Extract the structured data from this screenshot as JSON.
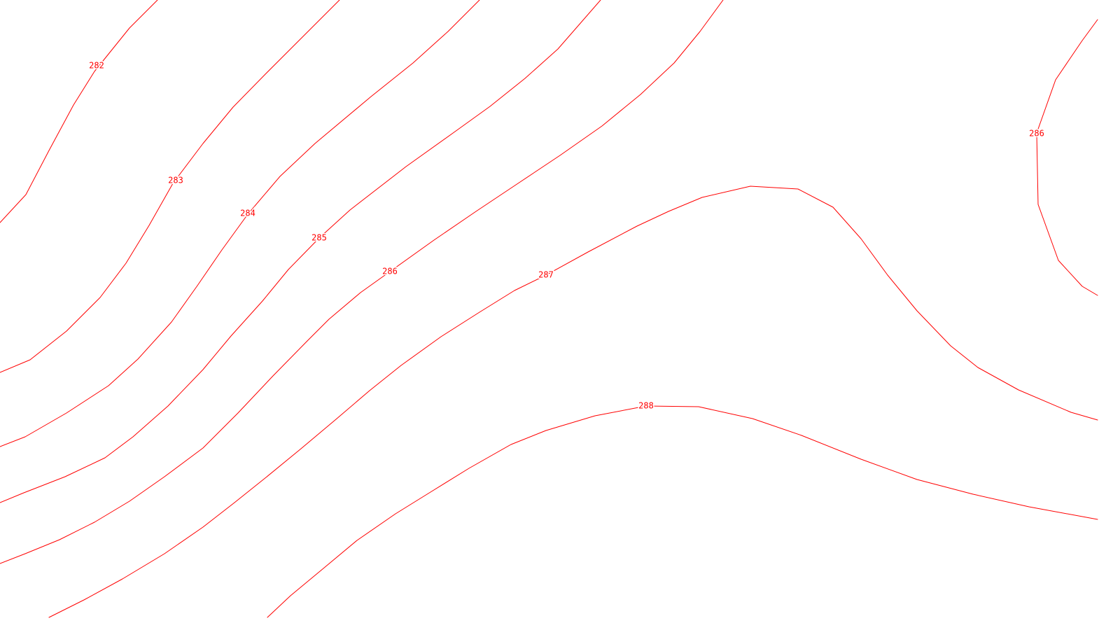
{
  "map": {
    "line_color": "#ff0000",
    "background": "#ffffff",
    "contours": [
      {
        "id": "c282",
        "label": "282"
      },
      {
        "id": "c283",
        "label": "283"
      },
      {
        "id": "c284",
        "label": "284"
      },
      {
        "id": "c285",
        "label": "285"
      },
      {
        "id": "c286",
        "label": "286"
      },
      {
        "id": "c287",
        "label": "287"
      },
      {
        "id": "c288",
        "label": "288"
      },
      {
        "id": "c286-east",
        "label": "286"
      }
    ]
  }
}
